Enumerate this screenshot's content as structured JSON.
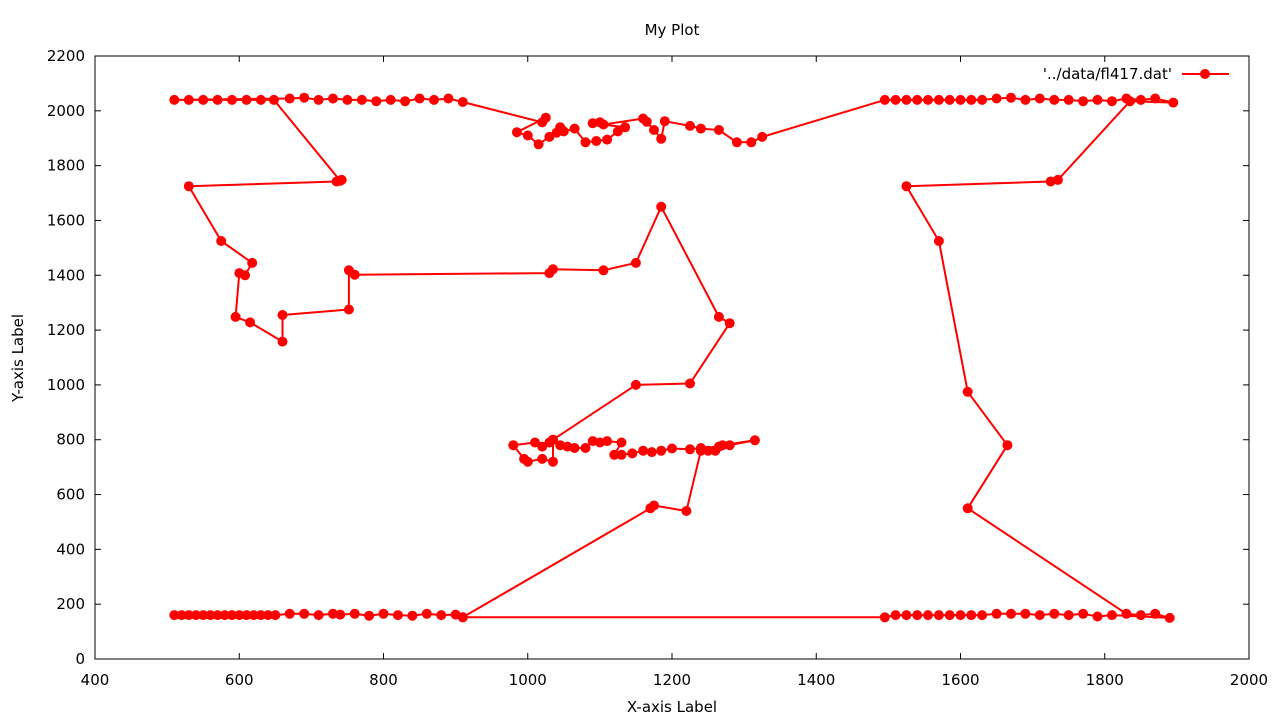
{
  "chart_data": {
    "type": "line",
    "title": "My Plot",
    "xlabel": "X-axis Label",
    "ylabel": "Y-axis Label",
    "xlim": [
      400,
      2000
    ],
    "ylim": [
      0,
      2200
    ],
    "xticks": [
      400,
      600,
      800,
      1000,
      1200,
      1400,
      1600,
      1800,
      2000
    ],
    "yticks": [
      0,
      200,
      400,
      600,
      800,
      1000,
      1200,
      1400,
      1600,
      1800,
      2000,
      2200
    ],
    "grid": false,
    "legend_position": "top-right",
    "series": [
      {
        "name": "'../data/fl417.dat'",
        "color": "#ff0000",
        "marker": "circle",
        "points": [
          [
            510,
            160
          ],
          [
            520,
            160
          ],
          [
            530,
            160
          ],
          [
            540,
            160
          ],
          [
            550,
            160
          ],
          [
            560,
            160
          ],
          [
            570,
            160
          ],
          [
            580,
            160
          ],
          [
            590,
            160
          ],
          [
            600,
            160
          ],
          [
            610,
            160
          ],
          [
            620,
            160
          ],
          [
            630,
            160
          ],
          [
            640,
            160
          ],
          [
            650,
            160
          ],
          [
            670,
            165
          ],
          [
            690,
            165
          ],
          [
            710,
            160
          ],
          [
            730,
            165
          ],
          [
            740,
            162
          ],
          [
            760,
            165
          ],
          [
            780,
            158
          ],
          [
            800,
            165
          ],
          [
            820,
            160
          ],
          [
            840,
            158
          ],
          [
            860,
            165
          ],
          [
            880,
            160
          ],
          [
            900,
            162
          ],
          [
            910,
            152
          ],
          [
            1170,
            550
          ],
          [
            1175,
            560
          ],
          [
            1220,
            540
          ],
          [
            1240,
            760
          ],
          [
            1250,
            760
          ],
          [
            1260,
            760
          ],
          [
            1270,
            780
          ],
          [
            1315,
            798
          ],
          [
            1280,
            780
          ],
          [
            1265,
            775
          ],
          [
            1240,
            770
          ],
          [
            1225,
            765
          ],
          [
            1200,
            768
          ],
          [
            1185,
            760
          ],
          [
            1172,
            755
          ],
          [
            1160,
            760
          ],
          [
            1145,
            750
          ],
          [
            1130,
            745
          ],
          [
            1120,
            745
          ],
          [
            1130,
            790
          ],
          [
            1110,
            795
          ],
          [
            1100,
            790
          ],
          [
            1090,
            795
          ],
          [
            1080,
            770
          ],
          [
            1065,
            770
          ],
          [
            1055,
            775
          ],
          [
            1045,
            780
          ],
          [
            1035,
            800
          ],
          [
            1035,
            720
          ],
          [
            1020,
            730
          ],
          [
            1000,
            720
          ],
          [
            995,
            730
          ],
          [
            980,
            780
          ],
          [
            1010,
            790
          ],
          [
            1020,
            775
          ],
          [
            1030,
            790
          ],
          [
            1035,
            800
          ],
          [
            1150,
            1000
          ],
          [
            1225,
            1005
          ],
          [
            1280,
            1225
          ],
          [
            1265,
            1248
          ],
          [
            1185,
            1650
          ],
          [
            1150,
            1445
          ],
          [
            1105,
            1418
          ],
          [
            1035,
            1422
          ],
          [
            1030,
            1408
          ],
          [
            760,
            1402
          ],
          [
            752,
            1418
          ],
          [
            752,
            1275
          ],
          [
            660,
            1255
          ],
          [
            660,
            1158
          ],
          [
            615,
            1228
          ],
          [
            595,
            1248
          ],
          [
            600,
            1408
          ],
          [
            608,
            1400
          ],
          [
            618,
            1445
          ],
          [
            575,
            1525
          ],
          [
            530,
            1725
          ],
          [
            735,
            1742
          ],
          [
            742,
            1748
          ],
          [
            740,
            1745
          ],
          [
            648,
            2040
          ],
          [
            630,
            2040
          ],
          [
            610,
            2040
          ],
          [
            590,
            2040
          ],
          [
            570,
            2040
          ],
          [
            550,
            2040
          ],
          [
            530,
            2040
          ],
          [
            510,
            2040
          ],
          [
            670,
            2045
          ],
          [
            690,
            2048
          ],
          [
            710,
            2040
          ],
          [
            730,
            2045
          ],
          [
            750,
            2040
          ],
          [
            770,
            2040
          ],
          [
            790,
            2035
          ],
          [
            810,
            2040
          ],
          [
            830,
            2035
          ],
          [
            850,
            2045
          ],
          [
            870,
            2040
          ],
          [
            890,
            2045
          ],
          [
            910,
            2032
          ],
          [
            1020,
            1958
          ],
          [
            1025,
            1975
          ],
          [
            985,
            1922
          ],
          [
            1000,
            1910
          ],
          [
            1015,
            1878
          ],
          [
            1030,
            1905
          ],
          [
            1040,
            1920
          ],
          [
            1045,
            1940
          ],
          [
            1050,
            1925
          ],
          [
            1065,
            1935
          ],
          [
            1080,
            1885
          ],
          [
            1095,
            1890
          ],
          [
            1110,
            1895
          ],
          [
            1125,
            1925
          ],
          [
            1135,
            1940
          ],
          [
            1090,
            1955
          ],
          [
            1100,
            1958
          ],
          [
            1105,
            1950
          ],
          [
            1160,
            1972
          ],
          [
            1165,
            1960
          ],
          [
            1175,
            1930
          ],
          [
            1185,
            1898
          ],
          [
            1190,
            1962
          ],
          [
            1225,
            1945
          ],
          [
            1240,
            1935
          ],
          [
            1265,
            1930
          ],
          [
            1290,
            1885
          ],
          [
            1310,
            1885
          ],
          [
            1325,
            1905
          ],
          [
            1495,
            2040
          ],
          [
            1510,
            2040
          ],
          [
            1525,
            2040
          ],
          [
            1540,
            2040
          ],
          [
            1555,
            2040
          ],
          [
            1570,
            2040
          ],
          [
            1585,
            2040
          ],
          [
            1600,
            2040
          ],
          [
            1615,
            2040
          ],
          [
            1630,
            2040
          ],
          [
            1650,
            2045
          ],
          [
            1670,
            2048
          ],
          [
            1690,
            2040
          ],
          [
            1710,
            2045
          ],
          [
            1730,
            2040
          ],
          [
            1750,
            2040
          ],
          [
            1770,
            2035
          ],
          [
            1790,
            2040
          ],
          [
            1810,
            2035
          ],
          [
            1830,
            2045
          ],
          [
            1850,
            2040
          ],
          [
            1870,
            2045
          ],
          [
            1895,
            2030
          ],
          [
            1835,
            2035
          ],
          [
            1735,
            1748
          ],
          [
            1725,
            1742
          ],
          [
            1525,
            1725
          ],
          [
            1570,
            1525
          ],
          [
            1610,
            975
          ],
          [
            1665,
            780
          ],
          [
            1610,
            550
          ],
          [
            1830,
            165
          ],
          [
            1850,
            160
          ],
          [
            1870,
            165
          ],
          [
            1890,
            150
          ],
          [
            1810,
            160
          ],
          [
            1790,
            155
          ],
          [
            1770,
            165
          ],
          [
            1750,
            160
          ],
          [
            1730,
            165
          ],
          [
            1710,
            160
          ],
          [
            1690,
            165
          ],
          [
            1670,
            165
          ],
          [
            1650,
            165
          ],
          [
            1630,
            160
          ],
          [
            1615,
            160
          ],
          [
            1600,
            160
          ],
          [
            1585,
            160
          ],
          [
            1570,
            160
          ],
          [
            1555,
            160
          ],
          [
            1540,
            160
          ],
          [
            1525,
            160
          ],
          [
            1510,
            160
          ],
          [
            1495,
            152
          ],
          [
            910,
            152
          ]
        ]
      }
    ]
  }
}
